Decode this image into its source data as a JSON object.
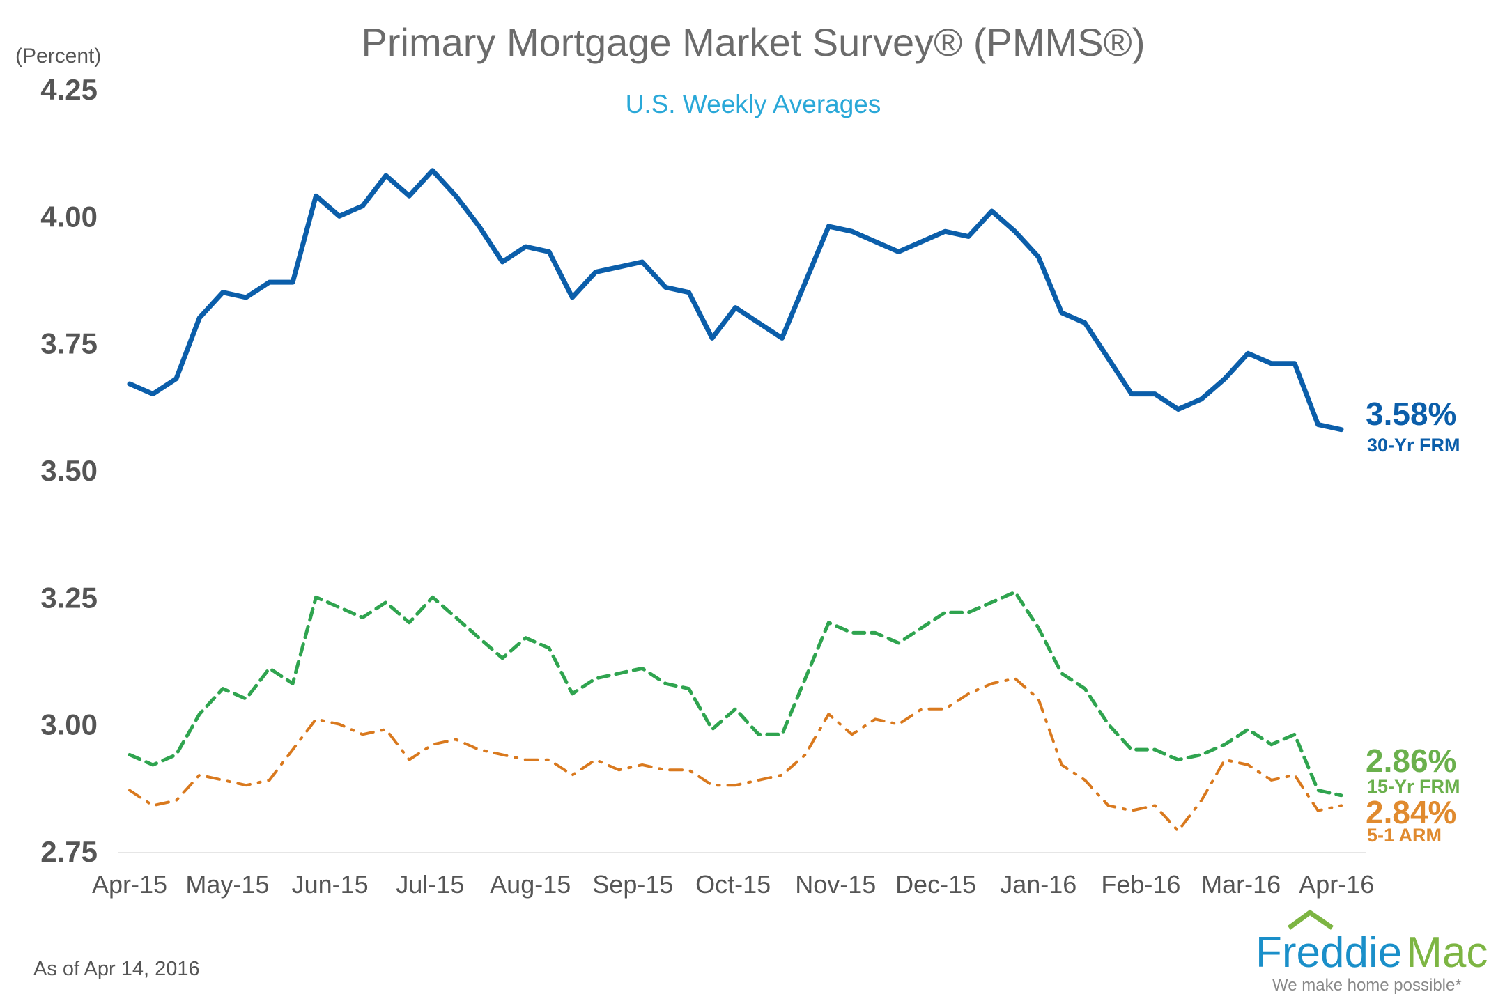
{
  "chart_data": {
    "type": "line",
    "title": "Primary Mortgage Market Survey® (PMMS®)",
    "subtitle": "U.S. Weekly Averages",
    "ylabel": "(Percent)",
    "xlabel": "",
    "ylim": [
      2.75,
      4.25
    ],
    "yticks": [
      "4.25",
      "4.00",
      "3.75",
      "3.50",
      "3.25",
      "3.00",
      "2.75"
    ],
    "ytick_values": [
      4.25,
      4.0,
      3.75,
      3.5,
      3.25,
      3.0,
      2.75
    ],
    "xticks": [
      "Apr-15",
      "May-15",
      "Jun-15",
      "Jul-15",
      "Aug-15",
      "Sep-15",
      "Oct-15",
      "Nov-15",
      "Dec-15",
      "Jan-16",
      "Feb-16",
      "Mar-16",
      "Apr-16"
    ],
    "grid": false,
    "series": [
      {
        "name": "30-Yr FRM",
        "end_label": "3.58%",
        "color": "#0b5eaa",
        "style": "solid",
        "values": [
          3.67,
          3.65,
          3.68,
          3.8,
          3.85,
          3.84,
          3.87,
          3.87,
          4.04,
          4.0,
          4.02,
          4.08,
          4.04,
          4.09,
          4.04,
          3.98,
          3.91,
          3.94,
          3.93,
          3.84,
          3.89,
          3.9,
          3.91,
          3.86,
          3.85,
          3.76,
          3.82,
          3.79,
          3.76,
          3.87,
          3.98,
          3.97,
          3.95,
          3.93,
          3.95,
          3.97,
          3.96,
          4.01,
          3.97,
          3.92,
          3.81,
          3.79,
          3.72,
          3.65,
          3.65,
          3.62,
          3.64,
          3.68,
          3.73,
          3.71,
          3.71,
          3.59,
          3.58
        ]
      },
      {
        "name": "15-Yr FRM",
        "end_label": "2.86%",
        "color": "#2fa44f",
        "label_color": "#6ab04c",
        "style": "dashed",
        "values": [
          2.94,
          2.92,
          2.94,
          3.02,
          3.07,
          3.05,
          3.11,
          3.08,
          3.25,
          3.23,
          3.21,
          3.24,
          3.2,
          3.25,
          3.21,
          3.17,
          3.13,
          3.17,
          3.15,
          3.06,
          3.09,
          3.1,
          3.11,
          3.08,
          3.07,
          2.99,
          3.03,
          2.98,
          2.98,
          3.09,
          3.2,
          3.18,
          3.18,
          3.16,
          3.19,
          3.22,
          3.22,
          3.24,
          3.26,
          3.19,
          3.1,
          3.07,
          3.0,
          2.95,
          2.95,
          2.93,
          2.94,
          2.96,
          2.99,
          2.96,
          2.98,
          2.87,
          2.86
        ]
      },
      {
        "name": "5-1 ARM",
        "end_label": "2.84%",
        "color": "#d9791e",
        "label_color": "#e08a2e",
        "style": "dash-dot",
        "values": [
          2.87,
          2.84,
          2.85,
          2.9,
          2.89,
          2.88,
          2.89,
          2.95,
          3.01,
          3.0,
          2.98,
          2.99,
          2.93,
          2.96,
          2.97,
          2.95,
          2.94,
          2.93,
          2.93,
          2.9,
          2.93,
          2.91,
          2.92,
          2.91,
          2.91,
          2.88,
          2.88,
          2.89,
          2.9,
          2.94,
          3.02,
          2.98,
          3.01,
          3.0,
          3.03,
          3.03,
          3.06,
          3.08,
          3.09,
          3.05,
          2.92,
          2.89,
          2.84,
          2.83,
          2.84,
          2.79,
          2.85,
          2.93,
          2.92,
          2.89,
          2.9,
          2.83,
          2.84
        ]
      }
    ]
  },
  "footer": {
    "as_of": "As of Apr 14, 2016"
  },
  "logo": {
    "name_part1": "Freddie",
    "name_part2": "Mac",
    "tagline": "We make home possible*"
  }
}
